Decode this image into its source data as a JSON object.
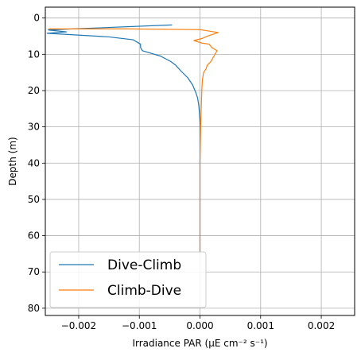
{
  "chart_data": {
    "type": "line",
    "xlabel": "Irradiance PAR (µE cm⁻² s⁻¹)",
    "ylabel": "Depth (m)",
    "xlim": [
      -0.00255,
      0.00255
    ],
    "ylim": [
      82,
      -3
    ],
    "y_inverted": true,
    "x_ticks": [
      -0.002,
      -0.001,
      0.0,
      0.001,
      0.002
    ],
    "x_tick_labels": [
      "−0.002",
      "−0.001",
      "0.000",
      "0.001",
      "0.002"
    ],
    "y_ticks": [
      0,
      10,
      20,
      30,
      40,
      50,
      60,
      70,
      80
    ],
    "y_tick_labels": [
      "0",
      "10",
      "20",
      "30",
      "40",
      "50",
      "60",
      "70",
      "80"
    ],
    "grid": true,
    "legend_position": "lower-left",
    "series": [
      {
        "name": "Dive-Climb",
        "color": "#1f77b4",
        "points": [
          [
            -0.00046,
            1.9
          ],
          [
            -0.0021,
            3.0
          ],
          [
            -0.0025,
            3.3
          ],
          [
            -0.0022,
            3.8
          ],
          [
            -0.00252,
            4.2
          ],
          [
            -0.0015,
            5.2
          ],
          [
            -0.0011,
            6.0
          ],
          [
            -0.00098,
            7.2
          ],
          [
            -0.00098,
            8.1
          ],
          [
            -0.00095,
            9.0
          ],
          [
            -0.00085,
            9.5
          ],
          [
            -0.00065,
            10.5
          ],
          [
            -0.00048,
            12.0
          ],
          [
            -0.0004,
            13.0
          ],
          [
            -0.00032,
            14.5
          ],
          [
            -0.0002,
            16.5
          ],
          [
            -0.00012,
            18.5
          ],
          [
            -7e-05,
            20.5
          ],
          [
            -4e-05,
            22.0
          ],
          [
            -2e-05,
            24.0
          ],
          [
            -1e-05,
            26.0
          ],
          [
            0.0,
            29.0
          ],
          [
            0.0,
            40.0
          ],
          [
            0.0,
            60.0
          ],
          [
            0.0,
            65.0
          ]
        ]
      },
      {
        "name": "Climb-Dive",
        "color": "#ff7f0e",
        "points": [
          [
            -0.0025,
            3.0
          ],
          [
            -0.0012,
            3.0
          ],
          [
            0.0,
            3.2
          ],
          [
            0.0003,
            4.0
          ],
          [
            0.00012,
            5.0
          ],
          [
            4e-05,
            5.6
          ],
          [
            -0.0001,
            6.2
          ],
          [
            3e-05,
            6.9
          ],
          [
            0.00015,
            7.2
          ],
          [
            0.0002,
            8.2
          ],
          [
            0.00028,
            9.0
          ],
          [
            0.00023,
            10.5
          ],
          [
            0.00018,
            12.0
          ],
          [
            0.00012,
            13.0
          ],
          [
            0.0001,
            14.0
          ],
          [
            6e-05,
            15.0
          ],
          [
            4e-05,
            17.0
          ],
          [
            3e-05,
            20.0
          ],
          [
            2e-05,
            25.0
          ],
          [
            1e-05,
            30.0
          ],
          [
            0.0,
            40.0
          ],
          [
            0.0,
            55.0
          ],
          [
            0.0,
            65.0
          ]
        ]
      }
    ]
  }
}
